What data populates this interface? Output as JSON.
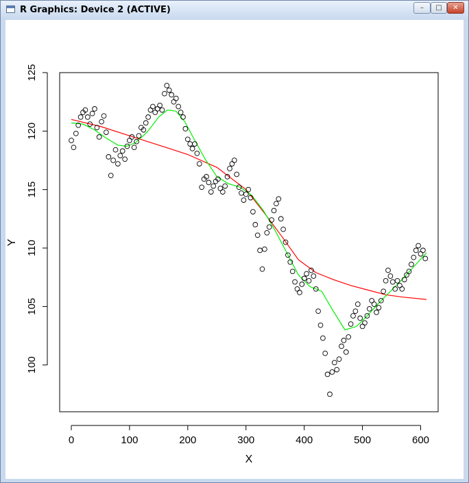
{
  "window": {
    "title": "R Graphics: Device 2 (ACTIVE)",
    "controls": {
      "minimize_icon": "minimize-icon",
      "maximize_icon": "maximize-icon",
      "close_icon": "close-icon"
    }
  },
  "chart_data": {
    "type": "scatter",
    "xlabel": "X",
    "ylabel": "Y",
    "xlim": [
      -20,
      630
    ],
    "ylim": [
      96,
      125
    ],
    "xticks": [
      0,
      100,
      200,
      300,
      400,
      500,
      600
    ],
    "yticks": [
      100,
      105,
      110,
      115,
      120,
      125
    ],
    "grid": false,
    "points": {
      "x": [
        0,
        4,
        8,
        12,
        16,
        20,
        24,
        28,
        32,
        36,
        40,
        44,
        48,
        52,
        56,
        60,
        64,
        68,
        72,
        76,
        80,
        84,
        88,
        92,
        96,
        100,
        104,
        108,
        112,
        116,
        120,
        124,
        128,
        132,
        136,
        140,
        144,
        148,
        152,
        156,
        160,
        164,
        168,
        172,
        176,
        180,
        184,
        188,
        192,
        196,
        200,
        204,
        208,
        212,
        216,
        220,
        224,
        228,
        232,
        236,
        240,
        244,
        248,
        252,
        256,
        260,
        264,
        268,
        272,
        276,
        280,
        284,
        288,
        292,
        296,
        300,
        304,
        308,
        312,
        316,
        320,
        324,
        328,
        332,
        336,
        340,
        344,
        348,
        352,
        356,
        360,
        364,
        368,
        372,
        376,
        380,
        384,
        388,
        392,
        396,
        400,
        404,
        408,
        412,
        416,
        420,
        424,
        428,
        432,
        436,
        440,
        444,
        448,
        452,
        456,
        460,
        464,
        468,
        472,
        476,
        480,
        484,
        488,
        492,
        496,
        500,
        504,
        508,
        512,
        516,
        520,
        524,
        528,
        532,
        536,
        540,
        544,
        548,
        552,
        556,
        560,
        564,
        568,
        572,
        576,
        580,
        584,
        588,
        592,
        596,
        600,
        604,
        608
      ],
      "y": [
        119.2,
        118.6,
        119.8,
        120.5,
        121.2,
        121.6,
        121.8,
        121.2,
        120.6,
        121.5,
        121.9,
        120.3,
        119.5,
        120.8,
        121.3,
        119.9,
        117.8,
        116.2,
        117.5,
        118.4,
        117.2,
        117.9,
        118.3,
        117.6,
        118.7,
        119.2,
        119.5,
        118.6,
        119.1,
        119.6,
        120.3,
        120.1,
        120.7,
        121.2,
        121.8,
        122.1,
        121.6,
        121.9,
        122.2,
        121.8,
        123.2,
        123.9,
        123.5,
        123.1,
        122.5,
        122.8,
        122.1,
        121.6,
        121.2,
        120.2,
        119.3,
        118.9,
        118.5,
        118.9,
        118.1,
        117.2,
        115.2,
        115.9,
        116.1,
        115.6,
        114.8,
        115.3,
        115.7,
        115.9,
        115.1,
        114.8,
        115.3,
        116.1,
        116.8,
        117.2,
        117.5,
        116.3,
        115.2,
        114.7,
        114.1,
        114.6,
        115.0,
        114.3,
        113.1,
        112.0,
        111.1,
        109.8,
        108.2,
        109.9,
        111.3,
        111.8,
        112.4,
        113.2,
        113.8,
        114.2,
        112.5,
        111.6,
        110.5,
        109.4,
        108.8,
        108.0,
        107.1,
        106.5,
        106.2,
        106.9,
        107.4,
        107.8,
        107.2,
        108.1,
        107.6,
        106.5,
        104.6,
        103.4,
        102.3,
        101.0,
        99.2,
        97.5,
        99.4,
        100.2,
        99.6,
        100.5,
        101.6,
        102.1,
        101.1,
        102.4,
        103.5,
        104.2,
        104.6,
        105.2,
        104.0,
        103.3,
        103.6,
        104.2,
        104.8,
        105.5,
        105.2,
        104.5,
        104.9,
        105.5,
        106.3,
        107.2,
        108.1,
        107.6,
        107.1,
        106.5,
        107.2,
        106.8,
        106.5,
        107.3,
        107.7,
        108.0,
        108.6,
        109.2,
        109.8,
        110.2,
        109.5,
        109.8,
        109.1
      ]
    },
    "series": [
      {
        "color": "#ff0000",
        "x": [
          0,
          50,
          100,
          150,
          200,
          250,
          300,
          330,
          360,
          390,
          420,
          450,
          480,
          510,
          540,
          570,
          610
        ],
        "y": [
          121.0,
          120.4,
          119.6,
          118.8,
          118.0,
          116.9,
          115.0,
          113.1,
          111.1,
          109.0,
          107.9,
          107.3,
          106.8,
          106.4,
          106.0,
          105.8,
          105.6
        ]
      },
      {
        "color": "#00ee00",
        "x": [
          0,
          20,
          40,
          60,
          80,
          95,
          110,
          130,
          150,
          165,
          180,
          195,
          210,
          230,
          250,
          270,
          290,
          310,
          330,
          350,
          370,
          390,
          410,
          430,
          450,
          470,
          490,
          510,
          530,
          550,
          570,
          590,
          610
        ],
        "y": [
          120.7,
          120.6,
          120.1,
          119.4,
          118.8,
          118.7,
          119.0,
          119.9,
          121.2,
          121.8,
          121.7,
          120.8,
          119.4,
          117.6,
          116.1,
          115.5,
          115.2,
          114.5,
          113.2,
          111.5,
          109.6,
          107.7,
          106.7,
          106.3,
          104.6,
          103.0,
          103.3,
          104.3,
          105.4,
          106.4,
          107.4,
          108.5,
          109.6
        ]
      }
    ]
  }
}
